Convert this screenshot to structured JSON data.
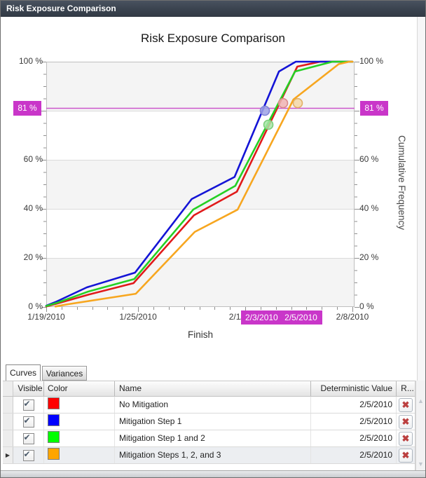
{
  "window": {
    "title": "Risk Exposure Comparison"
  },
  "icons": {
    "remove": "✖",
    "scroll_up": "▲",
    "scroll_down": "▼",
    "row_selector": "▶",
    "checkbox_check": "✔"
  },
  "tabs": [
    {
      "label": "Curves",
      "active": true
    },
    {
      "label": "Variances",
      "active": false
    }
  ],
  "chart_data": {
    "type": "line",
    "title": "Risk Exposure Comparison",
    "xlabel": "Finish",
    "ylabel_right": "Cumulative Frequency",
    "x_range_days": [
      0,
      20
    ],
    "ylim": [
      0,
      100
    ],
    "y_minor_step": 5,
    "y_major_step": 20,
    "grid": "horizontal",
    "band_fill": "#f4f4f4",
    "x_tick_labels": [
      {
        "day": 0,
        "label": "1/19/2010"
      },
      {
        "day": 6,
        "label": "1/25/2010"
      },
      {
        "day": 13,
        "label": "2/1/2010"
      },
      {
        "day": 20,
        "label": "2/8/2010"
      }
    ],
    "y_tick_labels": [
      {
        "pct": 100,
        "label": "100 %"
      },
      {
        "pct": 60,
        "label": "60 %"
      },
      {
        "pct": 40,
        "label": "40 %"
      },
      {
        "pct": 20,
        "label": "20 %"
      },
      {
        "pct": 0,
        "label": "0 %"
      }
    ],
    "crosshair": {
      "pct": 81,
      "left_label": "81 %",
      "right_label": "81 %",
      "date_label_1": "2/3/2010",
      "date_label_2": "2/5/2010",
      "magenta": "#c936c9"
    },
    "series": [
      {
        "name": "No Mitigation",
        "color": "#e01a1a",
        "points": [
          [
            0,
            0.2
          ],
          [
            0.7,
            1.4
          ],
          [
            2.8,
            5.1
          ],
          [
            5.7,
            9.7
          ],
          [
            9.65,
            37.4
          ],
          [
            12.45,
            47.0
          ],
          [
            16.4,
            98.0
          ],
          [
            17.9,
            100
          ],
          [
            20,
            100
          ]
        ]
      },
      {
        "name": "Mitigation Step 1",
        "color": "#1414d6",
        "points": [
          [
            0,
            0.5
          ],
          [
            0.6,
            2.0
          ],
          [
            2.65,
            8.0
          ],
          [
            5.8,
            14.0
          ],
          [
            9.5,
            44.0
          ],
          [
            12.3,
            53.0
          ],
          [
            15.2,
            96.0
          ],
          [
            16.3,
            100
          ],
          [
            20,
            100
          ]
        ]
      },
      {
        "name": "Mitigation Step 1 and 2",
        "color": "#24d024",
        "points": [
          [
            0,
            0.4
          ],
          [
            0.7,
            1.7
          ],
          [
            2.75,
            6.3
          ],
          [
            5.75,
            11.4
          ],
          [
            9.6,
            39.7
          ],
          [
            12.35,
            49.4
          ],
          [
            16.25,
            96.0
          ],
          [
            18.7,
            100
          ],
          [
            20,
            100
          ]
        ]
      },
      {
        "name": "Mitigation Steps 1, 2, and 3",
        "color": "#f7a61f",
        "points": [
          [
            0.6,
            0.2
          ],
          [
            1.4,
            1.1
          ],
          [
            5.85,
            5.4
          ],
          [
            9.7,
            30.6
          ],
          [
            12.5,
            39.7
          ],
          [
            16.15,
            84.6
          ],
          [
            19.1,
            99.0
          ],
          [
            19.8,
            100
          ],
          [
            20,
            100
          ]
        ]
      }
    ],
    "markers": [
      {
        "series": "Mitigation Step 1",
        "day": 14.28,
        "pct": 80.0,
        "fill": "#9fa3e6",
        "stroke": "#8084d6"
      },
      {
        "series": "Mitigation Step 1 and 2",
        "day": 14.51,
        "pct": 74.3,
        "fill": "#a8e6a8",
        "stroke": "#7bce7b"
      },
      {
        "series": "No Mitigation",
        "day": 15.47,
        "pct": 83.1,
        "fill": "#f0b3b3",
        "stroke": "#dc8a8a"
      },
      {
        "series": "Mitigation Steps 1, 2, and 3",
        "day": 16.43,
        "pct": 83.1,
        "fill": "#f5d7a6",
        "stroke": "#e2b065"
      }
    ]
  },
  "table": {
    "columns": [
      "Visible",
      "Color",
      "Name",
      "Deterministic Value",
      "R..."
    ],
    "rows": [
      {
        "visible": true,
        "color_hex": "#ff0000",
        "color_name": "Red",
        "name": "No Mitigation",
        "deterministic_value": "2/5/2010",
        "selected": false
      },
      {
        "visible": true,
        "color_hex": "#0000ff",
        "color_name": "Blue",
        "name": "Mitigation Step 1",
        "deterministic_value": "2/5/2010",
        "selected": false
      },
      {
        "visible": true,
        "color_hex": "#00ff00",
        "color_name": "#FF00FF00",
        "name": "Mitigation Step 1 and 2",
        "deterministic_value": "2/5/2010",
        "selected": false
      },
      {
        "visible": true,
        "color_hex": "#ffa500",
        "color_name": "Orange",
        "name": "Mitigation Steps 1, 2, and 3",
        "deterministic_value": "2/5/2010",
        "selected": true
      }
    ]
  }
}
